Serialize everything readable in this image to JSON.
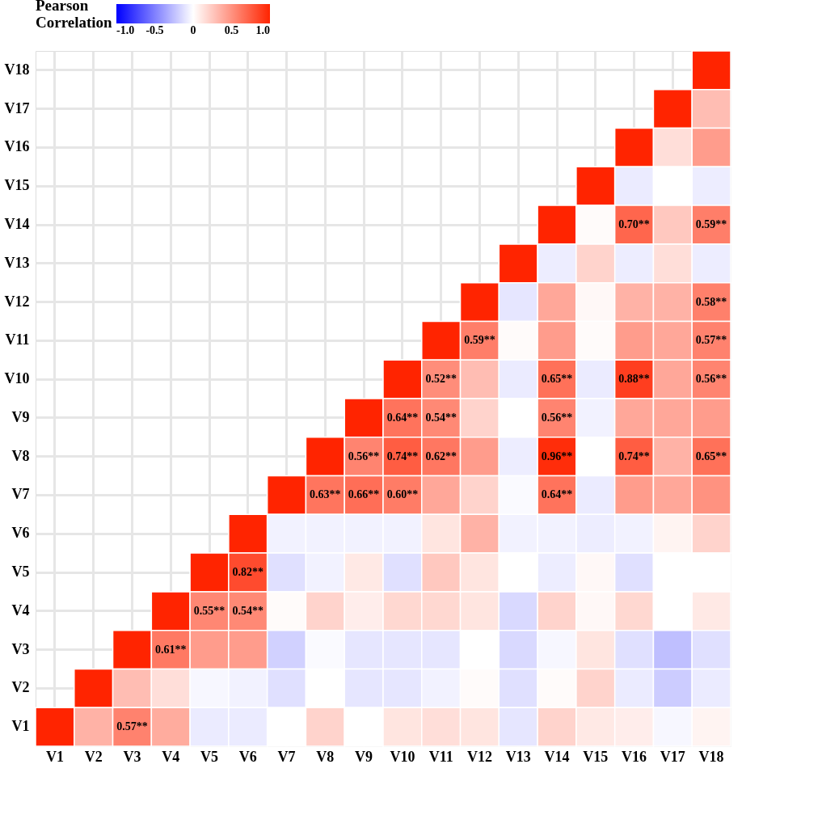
{
  "chart_data": {
    "type": "heatmap",
    "categories": [
      "V1",
      "V2",
      "V3",
      "V4",
      "V5",
      "V6",
      "V7",
      "V8",
      "V9",
      "V10",
      "V11",
      "V12",
      "V13",
      "V14",
      "V15",
      "V16",
      "V17",
      "V18"
    ],
    "y_categories": [
      "V18",
      "V17",
      "V16",
      "V15",
      "V14",
      "V13",
      "V12",
      "V11",
      "V10",
      "V9",
      "V8",
      "V7",
      "V6",
      "V5",
      "V4",
      "V3",
      "V2",
      "V1"
    ],
    "cells": [
      [
        null,
        null,
        null,
        null,
        null,
        null,
        null,
        null,
        null,
        null,
        null,
        null,
        null,
        null,
        null,
        null,
        null,
        1
      ],
      [
        null,
        null,
        null,
        null,
        null,
        null,
        null,
        null,
        null,
        null,
        null,
        null,
        null,
        null,
        null,
        null,
        1,
        0.3
      ],
      [
        null,
        null,
        null,
        null,
        null,
        null,
        null,
        null,
        null,
        null,
        null,
        null,
        null,
        null,
        null,
        1,
        0.15,
        0.45
      ],
      [
        null,
        null,
        null,
        null,
        null,
        null,
        null,
        null,
        null,
        null,
        null,
        null,
        null,
        null,
        1,
        -0.08,
        0.0,
        -0.07
      ],
      [
        null,
        null,
        null,
        null,
        null,
        null,
        null,
        null,
        null,
        null,
        null,
        null,
        null,
        1,
        0.02,
        0.7,
        0.25,
        0.59
      ],
      [
        null,
        null,
        null,
        null,
        null,
        null,
        null,
        null,
        null,
        null,
        null,
        null,
        1,
        -0.07,
        0.2,
        -0.07,
        0.15,
        -0.07
      ],
      [
        null,
        null,
        null,
        null,
        null,
        null,
        null,
        null,
        null,
        null,
        null,
        1,
        -0.1,
        0.4,
        0.03,
        0.35,
        0.35,
        0.58
      ],
      [
        null,
        null,
        null,
        null,
        null,
        null,
        null,
        null,
        null,
        null,
        1,
        0.59,
        0.02,
        0.45,
        0.02,
        0.45,
        0.4,
        0.57
      ],
      [
        null,
        null,
        null,
        null,
        null,
        null,
        null,
        null,
        null,
        1,
        0.52,
        0.3,
        -0.08,
        0.65,
        -0.08,
        0.88,
        0.4,
        0.56
      ],
      [
        null,
        null,
        null,
        null,
        null,
        null,
        null,
        null,
        1,
        0.64,
        0.54,
        0.2,
        0.0,
        0.56,
        -0.05,
        0.4,
        0.4,
        0.45
      ],
      [
        null,
        null,
        null,
        null,
        null,
        null,
        null,
        1,
        0.56,
        0.74,
        0.62,
        0.45,
        -0.07,
        0.96,
        0.0,
        0.74,
        0.35,
        0.65
      ],
      [
        null,
        null,
        null,
        null,
        null,
        null,
        1,
        0.63,
        0.66,
        0.6,
        0.4,
        0.2,
        -0.02,
        0.64,
        -0.08,
        0.45,
        0.4,
        0.5
      ],
      [
        null,
        null,
        null,
        null,
        null,
        1,
        -0.05,
        -0.05,
        -0.05,
        -0.05,
        0.12,
        0.35,
        -0.05,
        -0.05,
        -0.07,
        -0.05,
        0.05,
        0.2
      ],
      [
        null,
        null,
        null,
        null,
        1,
        0.82,
        -0.12,
        -0.05,
        0.1,
        -0.12,
        0.25,
        0.12,
        0.0,
        -0.07,
        0.03,
        -0.12,
        0.0,
        0.0
      ],
      [
        null,
        null,
        null,
        1,
        0.55,
        0.54,
        0.02,
        0.2,
        0.08,
        0.18,
        0.18,
        0.12,
        -0.15,
        0.2,
        0.03,
        0.18,
        0.0,
        0.1
      ],
      [
        null,
        null,
        1,
        0.61,
        0.45,
        0.45,
        -0.18,
        -0.02,
        -0.1,
        -0.1,
        -0.1,
        0.0,
        -0.15,
        -0.03,
        0.12,
        -0.12,
        -0.25,
        -0.12
      ],
      [
        null,
        1,
        0.3,
        0.15,
        -0.03,
        -0.05,
        -0.12,
        0.0,
        -0.1,
        -0.1,
        -0.05,
        0.02,
        -0.12,
        0.02,
        0.2,
        -0.08,
        -0.2,
        -0.08
      ],
      [
        1,
        0.35,
        0.57,
        0.38,
        -0.08,
        -0.08,
        0.0,
        0.2,
        0.0,
        0.12,
        0.15,
        0.12,
        -0.1,
        0.2,
        0.1,
        0.08,
        -0.03,
        0.05
      ]
    ],
    "cell_labels": [
      [
        null,
        null,
        null,
        null,
        null,
        null,
        null,
        null,
        null,
        null,
        null,
        null,
        null,
        null,
        null,
        null,
        null,
        null
      ],
      [
        null,
        null,
        null,
        null,
        null,
        null,
        null,
        null,
        null,
        null,
        null,
        null,
        null,
        null,
        null,
        null,
        null,
        null
      ],
      [
        null,
        null,
        null,
        null,
        null,
        null,
        null,
        null,
        null,
        null,
        null,
        null,
        null,
        null,
        null,
        null,
        null,
        null
      ],
      [
        null,
        null,
        null,
        null,
        null,
        null,
        null,
        null,
        null,
        null,
        null,
        null,
        null,
        null,
        null,
        null,
        null,
        null
      ],
      [
        null,
        null,
        null,
        null,
        null,
        null,
        null,
        null,
        null,
        null,
        null,
        null,
        null,
        null,
        null,
        "0.70**",
        null,
        "0.59**"
      ],
      [
        null,
        null,
        null,
        null,
        null,
        null,
        null,
        null,
        null,
        null,
        null,
        null,
        null,
        null,
        null,
        null,
        null,
        null
      ],
      [
        null,
        null,
        null,
        null,
        null,
        null,
        null,
        null,
        null,
        null,
        null,
        null,
        null,
        null,
        null,
        null,
        null,
        "0.58**"
      ],
      [
        null,
        null,
        null,
        null,
        null,
        null,
        null,
        null,
        null,
        null,
        null,
        "0.59**",
        null,
        null,
        null,
        null,
        null,
        "0.57**"
      ],
      [
        null,
        null,
        null,
        null,
        null,
        null,
        null,
        null,
        null,
        null,
        "0.52**",
        null,
        null,
        "0.65**",
        null,
        "0.88**",
        null,
        "0.56**"
      ],
      [
        null,
        null,
        null,
        null,
        null,
        null,
        null,
        null,
        null,
        "0.64**",
        "0.54**",
        null,
        null,
        "0.56**",
        null,
        null,
        null,
        null
      ],
      [
        null,
        null,
        null,
        null,
        null,
        null,
        null,
        null,
        "0.56**",
        "0.74**",
        "0.62**",
        null,
        null,
        "0.96**",
        null,
        "0.74**",
        null,
        "0.65**"
      ],
      [
        null,
        null,
        null,
        null,
        null,
        null,
        null,
        "0.63**",
        "0.66**",
        "0.60**",
        null,
        null,
        null,
        "0.64**",
        null,
        null,
        null,
        null
      ],
      [
        null,
        null,
        null,
        null,
        null,
        null,
        null,
        null,
        null,
        null,
        null,
        null,
        null,
        null,
        null,
        null,
        null,
        null
      ],
      [
        null,
        null,
        null,
        null,
        null,
        "0.82**",
        null,
        null,
        null,
        null,
        null,
        null,
        null,
        null,
        null,
        null,
        null,
        null
      ],
      [
        null,
        null,
        null,
        null,
        "0.55**",
        "0.54**",
        null,
        null,
        null,
        null,
        null,
        null,
        null,
        null,
        null,
        null,
        null,
        null
      ],
      [
        null,
        null,
        null,
        "0.61**",
        null,
        null,
        null,
        null,
        null,
        null,
        null,
        null,
        null,
        null,
        null,
        null,
        null,
        null
      ],
      [
        null,
        null,
        null,
        null,
        null,
        null,
        null,
        null,
        null,
        null,
        null,
        null,
        null,
        null,
        null,
        null,
        null,
        null
      ],
      [
        null,
        null,
        "0.57**",
        null,
        null,
        null,
        null,
        null,
        null,
        null,
        null,
        null,
        null,
        null,
        null,
        null,
        null,
        null
      ]
    ],
    "clabel": "Pearson Correlation",
    "clim": [
      -1,
      1
    ],
    "cticks": [
      {
        "value": -1,
        "label": "-1.0"
      },
      -0.5,
      0,
      0.5,
      {
        "value": 1,
        "label": "1.0"
      }
    ],
    "grid": true
  }
}
